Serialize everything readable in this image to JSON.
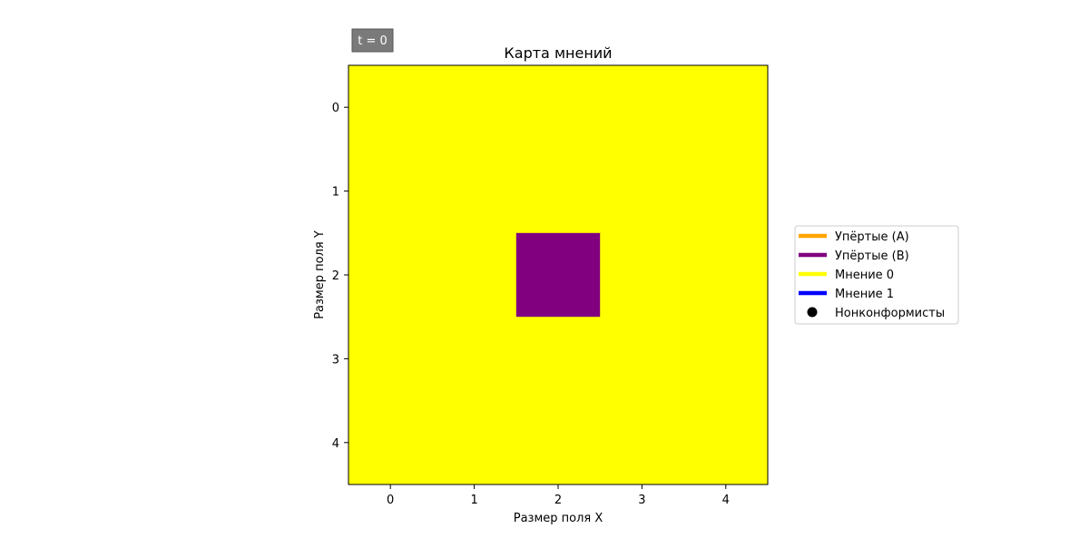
{
  "time_badge": {
    "text": "t = 0",
    "background": "#7a7a7a",
    "text_color": "#ffffff"
  },
  "chart_data": {
    "type": "heatmap",
    "title": "Карта мнений",
    "xlabel": "Размер поля X",
    "ylabel": "Размер поля Y",
    "x_ticks": [
      "0",
      "1",
      "2",
      "3",
      "4"
    ],
    "y_ticks": [
      "0",
      "1",
      "2",
      "3",
      "4"
    ],
    "xlim": [
      -0.5,
      4.5
    ],
    "ylim": [
      4.5,
      -0.5
    ],
    "grid": false,
    "y_axis_inverted": true,
    "cells": [
      [
        "Мнение 0",
        "Мнение 0",
        "Мнение 0",
        "Мнение 0",
        "Мнение 0"
      ],
      [
        "Мнение 0",
        "Мнение 0",
        "Мнение 0",
        "Мнение 0",
        "Мнение 0"
      ],
      [
        "Мнение 0",
        "Мнение 0",
        "Упёртые (B)",
        "Мнение 0",
        "Мнение 0"
      ],
      [
        "Мнение 0",
        "Мнение 0",
        "Мнение 0",
        "Мнение 0",
        "Мнение 0"
      ],
      [
        "Мнение 0",
        "Мнение 0",
        "Мнение 0",
        "Мнение 0",
        "Мнение 0"
      ]
    ],
    "legend_placement": "center-right, outside",
    "legend": [
      {
        "label": "Упёртые (A)",
        "marker": "line",
        "color": "#ffa500"
      },
      {
        "label": "Упёртые (B)",
        "marker": "line",
        "color": "#800080"
      },
      {
        "label": "Мнение 0",
        "marker": "line",
        "color": "#ffff00"
      },
      {
        "label": "Мнение 1",
        "marker": "line",
        "color": "#0000ff"
      },
      {
        "label": "Нонконформисты",
        "marker": "dot",
        "color": "#000000"
      }
    ]
  }
}
